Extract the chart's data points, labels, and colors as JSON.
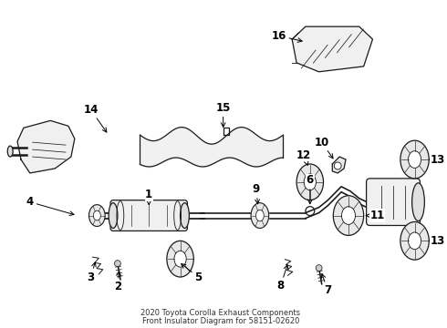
{
  "title_line1": "2020 Toyota Corolla Exhaust Components",
  "title_line2": "Front Insulator Diagram for 58151-02620",
  "bg": "#ffffff",
  "lc": "#1a1a1a",
  "fig_w": 4.9,
  "fig_h": 3.6,
  "dpi": 100
}
